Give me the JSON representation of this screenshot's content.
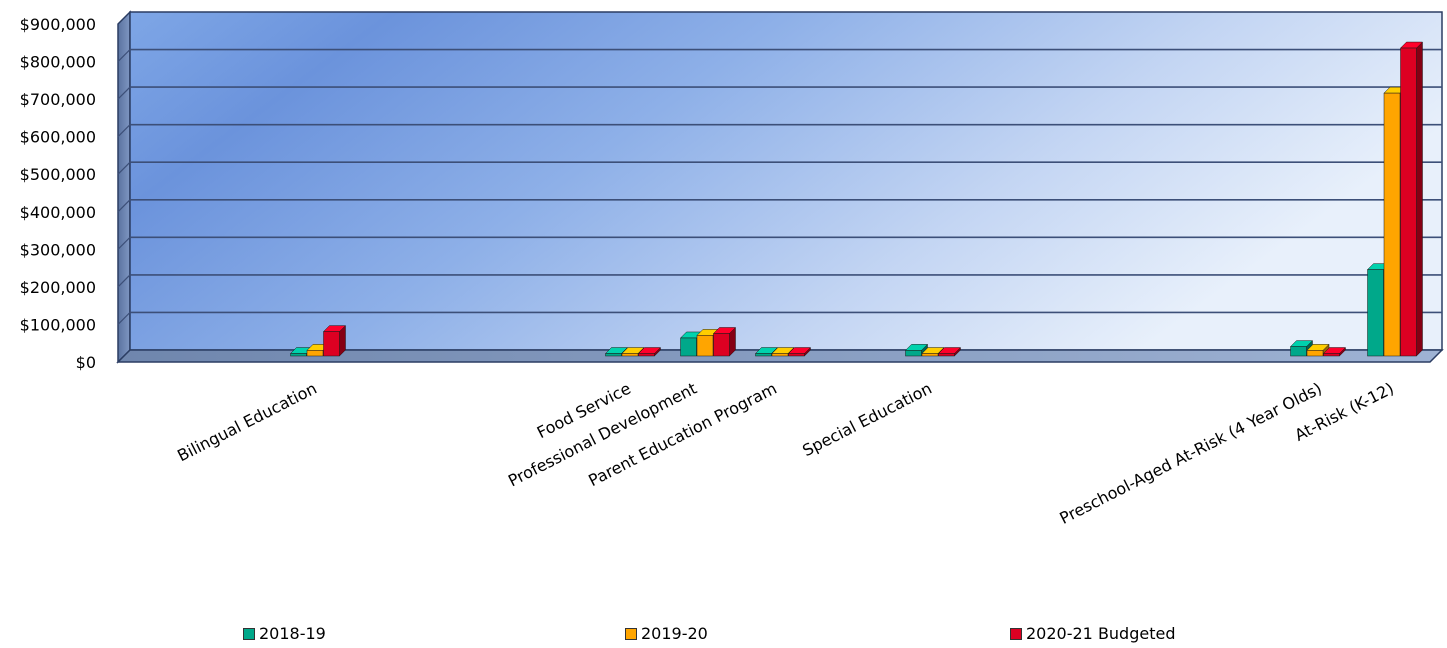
{
  "chart_data": {
    "type": "bar",
    "categories": [
      "Bilingual Education",
      "Food Service",
      "Professional Development",
      "Parent Education Program",
      "Special Education",
      "Preschool-Aged At-Risk (4 Year Olds)",
      "At-Risk (K-12)"
    ],
    "series": [
      {
        "name": "2018-19",
        "color": "#00a88a",
        "values": [
          4000,
          1000,
          48000,
          0,
          15000,
          25000,
          230000
        ]
      },
      {
        "name": "2019-20",
        "color": "#ffa500",
        "values": [
          15000,
          3000,
          55000,
          0,
          2000,
          15000,
          700000
        ]
      },
      {
        "name": "2020-21 Budgeted",
        "color": "#dd0022",
        "values": [
          65000,
          3000,
          60000,
          3000,
          0,
          0,
          820000
        ]
      }
    ],
    "y_ticks": [
      "$900,000",
      "$800,000",
      "$700,000",
      "$600,000",
      "$500,000",
      "$400,000",
      "$300,000",
      "$200,000",
      "$100,000",
      "$0"
    ],
    "ylim": [
      0,
      900000
    ],
    "grid": true,
    "legend_position": "bottom",
    "style": "3d-bar"
  }
}
